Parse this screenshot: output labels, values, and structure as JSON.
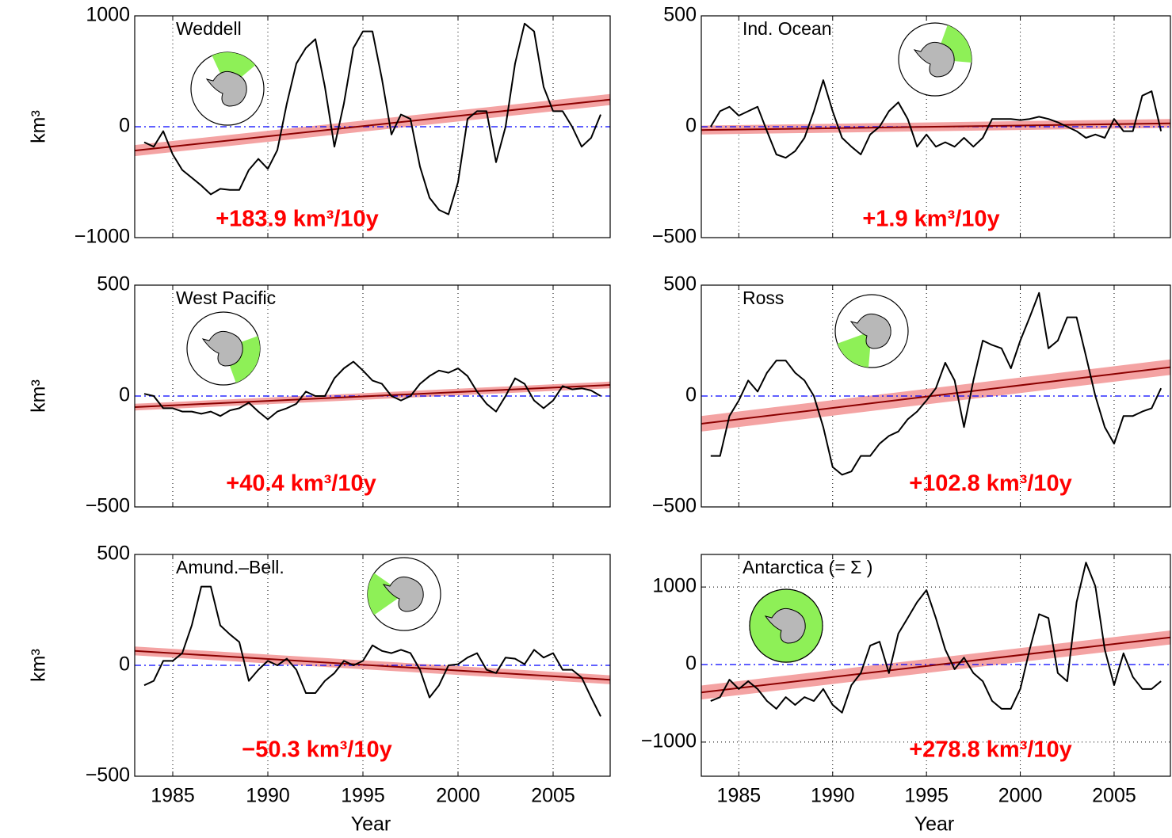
{
  "chart_data": [
    {
      "type": "line",
      "title": "Weddell",
      "annotation": "+183.9 km³/10y",
      "ylabel": "km³",
      "xlim": [
        1983,
        2008
      ],
      "xticks": [
        1985,
        1990,
        1995,
        2000,
        2005
      ],
      "xtick_labels": false,
      "ylim": [
        -1000,
        1000
      ],
      "yticks": [
        {
          "value": -1000,
          "label": "−1000"
        },
        0,
        1000
      ],
      "grid": "x",
      "reference_line": {
        "value": 0,
        "color": "#0000ff"
      },
      "x": [
        1983.5,
        1984,
        1984.5,
        1985,
        1985.5,
        1986,
        1986.5,
        1987,
        1987.5,
        1988,
        1988.5,
        1989,
        1989.5,
        1990,
        1990.5,
        1991,
        1991.5,
        1992,
        1992.5,
        1993,
        1993.5,
        1994,
        1994.5,
        1995,
        1995.5,
        1996,
        1996.5,
        1997,
        1997.5,
        1998,
        1998.5,
        1999,
        1999.5,
        2000,
        2000.5,
        2001,
        2001.5,
        2002,
        2002.5,
        2003,
        2003.5,
        2004,
        2004.5,
        2005,
        2005.5,
        2006,
        2006.5,
        2007,
        2007.5
      ],
      "series": [
        {
          "color": "#000000",
          "values": [
            -140,
            -180,
            -40,
            -250,
            -390,
            -460,
            -530,
            -610,
            -560,
            -570,
            -570,
            -390,
            -290,
            -380,
            -210,
            210,
            570,
            710,
            790,
            360,
            -180,
            210,
            710,
            860,
            860,
            430,
            -70,
            110,
            70,
            -360,
            -640,
            -750,
            -790,
            -500,
            70,
            140,
            140,
            -320,
            0,
            570,
            930,
            860,
            360,
            140,
            140,
            0,
            -180,
            -100,
            110
          ]
        }
      ],
      "trend": {
        "x": [
          1983,
          2008
        ],
        "values": [
          -215,
          245
        ],
        "band_lower": [
          -265,
          195
        ],
        "band_upper": [
          -165,
          295
        ],
        "color": "#8b0000",
        "band_color": "#f4a3a3"
      }
    },
    {
      "type": "line",
      "title": "Ind. Ocean",
      "annotation": "+1.9 km³/10y",
      "xlim": [
        1983,
        2008
      ],
      "xticks": [
        1985,
        1990,
        1995,
        2000,
        2005
      ],
      "xtick_labels": false,
      "ylim": [
        -500,
        500
      ],
      "yticks": [
        {
          "value": -500,
          "label": "−500"
        },
        0,
        500
      ],
      "grid": "x",
      "reference_line": {
        "value": 0,
        "color": "#0000ff"
      },
      "x": [
        1983.5,
        1984,
        1984.5,
        1985,
        1985.5,
        1986,
        1986.5,
        1987,
        1987.5,
        1988,
        1988.5,
        1989,
        1989.5,
        1990,
        1990.5,
        1991,
        1991.5,
        1992,
        1992.5,
        1993,
        1993.5,
        1994,
        1994.5,
        1995,
        1995.5,
        1996,
        1996.5,
        1997,
        1997.5,
        1998,
        1998.5,
        1999,
        1999.5,
        2000,
        2000.5,
        2001,
        2001.5,
        2002,
        2002.5,
        2003,
        2003.5,
        2004,
        2004.5,
        2005,
        2005.5,
        2006,
        2006.5,
        2007,
        2007.5
      ],
      "series": [
        {
          "color": "#000000",
          "values": [
            0,
            70,
            90,
            50,
            70,
            90,
            -20,
            -125,
            -140,
            -110,
            -50,
            70,
            210,
            70,
            -50,
            -90,
            -125,
            -35,
            0,
            70,
            110,
            35,
            -90,
            -35,
            -90,
            -70,
            -90,
            -50,
            -90,
            -50,
            35,
            35,
            35,
            30,
            35,
            45,
            35,
            20,
            0,
            -20,
            -50,
            -35,
            -50,
            35,
            -20,
            -20,
            140,
            160,
            -20
          ]
        }
      ],
      "trend": {
        "x": [
          1983,
          2008
        ],
        "values": [
          -15,
          15
        ],
        "band_lower": [
          -35,
          -5
        ],
        "band_upper": [
          5,
          35
        ],
        "color": "#8b0000",
        "band_color": "#f4a3a3"
      }
    },
    {
      "type": "line",
      "title": "West Pacific",
      "annotation": "+40.4 km³/10y",
      "ylabel": "km³",
      "xlim": [
        1983,
        2008
      ],
      "xticks": [
        1985,
        1990,
        1995,
        2000,
        2005
      ],
      "xtick_labels": false,
      "ylim": [
        -500,
        500
      ],
      "yticks": [
        {
          "value": -500,
          "label": "−500"
        },
        0,
        500
      ],
      "grid": "x",
      "reference_line": {
        "value": 0,
        "color": "#0000ff"
      },
      "x": [
        1983.5,
        1984,
        1984.5,
        1985,
        1985.5,
        1986,
        1986.5,
        1987,
        1987.5,
        1988,
        1988.5,
        1989,
        1989.5,
        1990,
        1990.5,
        1991,
        1991.5,
        1992,
        1992.5,
        1993,
        1993.5,
        1994,
        1994.5,
        1995,
        1995.5,
        1996,
        1996.5,
        1997,
        1997.5,
        1998,
        1998.5,
        1999,
        1999.5,
        2000,
        2000.5,
        2001,
        2001.5,
        2002,
        2002.5,
        2003,
        2003.5,
        2004,
        2004.5,
        2005,
        2005.5,
        2006,
        2006.5,
        2007,
        2007.5
      ],
      "series": [
        {
          "color": "#000000",
          "values": [
            10,
            0,
            -55,
            -55,
            -70,
            -70,
            -80,
            -70,
            -90,
            -65,
            -55,
            -30,
            -70,
            -105,
            -70,
            -55,
            -35,
            20,
            0,
            0,
            80,
            125,
            155,
            115,
            70,
            55,
            0,
            -20,
            0,
            55,
            90,
            115,
            105,
            125,
            90,
            20,
            -35,
            -70,
            0,
            80,
            55,
            -20,
            -55,
            -20,
            45,
            30,
            35,
            25,
            0
          ]
        }
      ],
      "trend": {
        "x": [
          1983,
          2008
        ],
        "values": [
          -50,
          50
        ],
        "band_lower": [
          -65,
          35
        ],
        "band_upper": [
          -35,
          65
        ],
        "color": "#8b0000",
        "band_color": "#f4a3a3"
      }
    },
    {
      "type": "line",
      "title": "Ross",
      "annotation": "+102.8 km³/10y",
      "xlim": [
        1983,
        2008
      ],
      "xticks": [
        1985,
        1990,
        1995,
        2000,
        2005
      ],
      "xtick_labels": false,
      "ylim": [
        -500,
        500
      ],
      "yticks": [
        {
          "value": -500,
          "label": "−500"
        },
        0,
        500
      ],
      "grid": "x",
      "reference_line": {
        "value": 0,
        "color": "#0000ff"
      },
      "x": [
        1983.5,
        1984,
        1984.5,
        1985,
        1985.5,
        1986,
        1986.5,
        1987,
        1987.5,
        1988,
        1988.5,
        1989,
        1989.5,
        1990,
        1990.5,
        1991,
        1991.5,
        1992,
        1992.5,
        1993,
        1993.5,
        1994,
        1994.5,
        1995,
        1995.5,
        1996,
        1996.5,
        1997,
        1997.5,
        1998,
        1998.5,
        1999,
        1999.5,
        2000,
        2000.5,
        2001,
        2001.5,
        2002,
        2002.5,
        2003,
        2003.5,
        2004,
        2004.5,
        2005,
        2005.5,
        2006,
        2006.5,
        2007,
        2007.5
      ],
      "series": [
        {
          "color": "#000000",
          "values": [
            -270,
            -270,
            -90,
            -20,
            70,
            20,
            105,
            160,
            160,
            105,
            70,
            0,
            -140,
            -320,
            -355,
            -340,
            -270,
            -270,
            -215,
            -180,
            -160,
            -105,
            -70,
            -20,
            35,
            150,
            70,
            -140,
            70,
            250,
            230,
            215,
            125,
            250,
            355,
            465,
            215,
            250,
            355,
            355,
            180,
            0,
            -140,
            -215,
            -90,
            -90,
            -70,
            -55,
            35
          ]
        }
      ],
      "trend": {
        "x": [
          1983,
          2008
        ],
        "values": [
          -125,
          130
        ],
        "band_lower": [
          -160,
          95
        ],
        "band_upper": [
          -90,
          165
        ],
        "color": "#8b0000",
        "band_color": "#f4a3a3"
      }
    },
    {
      "type": "line",
      "title": "Amund.–Bell.",
      "annotation": "−50.3 km³/10y",
      "ylabel": "km³",
      "xlabel": "Year",
      "xlim": [
        1983,
        2008
      ],
      "xticks": [
        1985,
        1990,
        1995,
        2000,
        2005
      ],
      "xtick_labels": true,
      "ylim": [
        -500,
        500
      ],
      "yticks": [
        {
          "value": -500,
          "label": "−500"
        },
        0,
        500
      ],
      "grid": "x",
      "reference_line": {
        "value": 0,
        "color": "#0000ff"
      },
      "x": [
        1983.5,
        1984,
        1984.5,
        1985,
        1985.5,
        1986,
        1986.5,
        1987,
        1987.5,
        1988,
        1988.5,
        1989,
        1989.5,
        1990,
        1990.5,
        1991,
        1991.5,
        1992,
        1992.5,
        1993,
        1993.5,
        1994,
        1994.5,
        1995,
        1995.5,
        1996,
        1996.5,
        1997,
        1997.5,
        1998,
        1998.5,
        1999,
        1999.5,
        2000,
        2000.5,
        2001,
        2001.5,
        2002,
        2002.5,
        2003,
        2003.5,
        2004,
        2004.5,
        2005,
        2005.5,
        2006,
        2006.5,
        2007,
        2007.5
      ],
      "series": [
        {
          "color": "#000000",
          "values": [
            -90,
            -70,
            20,
            20,
            55,
            180,
            355,
            355,
            180,
            140,
            105,
            -70,
            -20,
            20,
            0,
            30,
            -20,
            -125,
            -125,
            -70,
            -35,
            20,
            0,
            20,
            90,
            65,
            55,
            70,
            55,
            -20,
            -145,
            -90,
            0,
            5,
            35,
            55,
            -20,
            -35,
            35,
            30,
            5,
            70,
            35,
            55,
            -20,
            -20,
            -55,
            -145,
            -230
          ]
        }
      ],
      "trend": {
        "x": [
          1983,
          2008
        ],
        "values": [
          65,
          -65
        ],
        "band_lower": [
          45,
          -85
        ],
        "band_upper": [
          85,
          -45
        ],
        "color": "#8b0000",
        "band_color": "#f4a3a3"
      }
    },
    {
      "type": "line",
      "title": "Antarctica (= Σ )",
      "annotation": "+278.8 km³/10y",
      "xlabel": "Year",
      "xlim": [
        1983,
        2008
      ],
      "xticks": [
        1985,
        1990,
        1995,
        2000,
        2005
      ],
      "xtick_labels": true,
      "ylim": [
        -1440,
        1420
      ],
      "yticks": [
        {
          "value": -1000,
          "label": "−1000"
        },
        0,
        1000
      ],
      "grid": "both",
      "reference_line": {
        "value": 0,
        "color": "#0000ff"
      },
      "x": [
        1983.5,
        1984,
        1984.5,
        1985,
        1985.5,
        1986,
        1986.5,
        1987,
        1987.5,
        1988,
        1988.5,
        1989,
        1989.5,
        1990,
        1990.5,
        1991,
        1991.5,
        1992,
        1992.5,
        1993,
        1993.5,
        1994,
        1994.5,
        1995,
        1995.5,
        1996,
        1996.5,
        1997,
        1997.5,
        1998,
        1998.5,
        1999,
        1999.5,
        2000,
        2000.5,
        2001,
        2001.5,
        2002,
        2002.5,
        2003,
        2003.5,
        2004,
        2004.5,
        2005,
        2005.5,
        2006,
        2006.5,
        2007,
        2007.5
      ],
      "series": [
        {
          "color": "#000000",
          "values": [
            -470,
            -420,
            -195,
            -315,
            -215,
            -315,
            -470,
            -570,
            -420,
            -520,
            -420,
            -470,
            -315,
            -520,
            -620,
            -265,
            -110,
            245,
            295,
            -110,
            400,
            600,
            805,
            960,
            600,
            195,
            -60,
            90,
            -110,
            -215,
            -470,
            -570,
            -570,
            -315,
            195,
            650,
            600,
            -110,
            -215,
            805,
            1315,
            1010,
            195,
            -265,
            145,
            -160,
            -315,
            -315,
            -215
          ]
        }
      ],
      "trend": {
        "x": [
          1983,
          2008
        ],
        "values": [
          -360,
          350
        ],
        "band_lower": [
          -450,
          260
        ],
        "band_upper": [
          -270,
          440
        ],
        "color": "#8b0000",
        "band_color": "#f4a3a3"
      }
    }
  ]
}
